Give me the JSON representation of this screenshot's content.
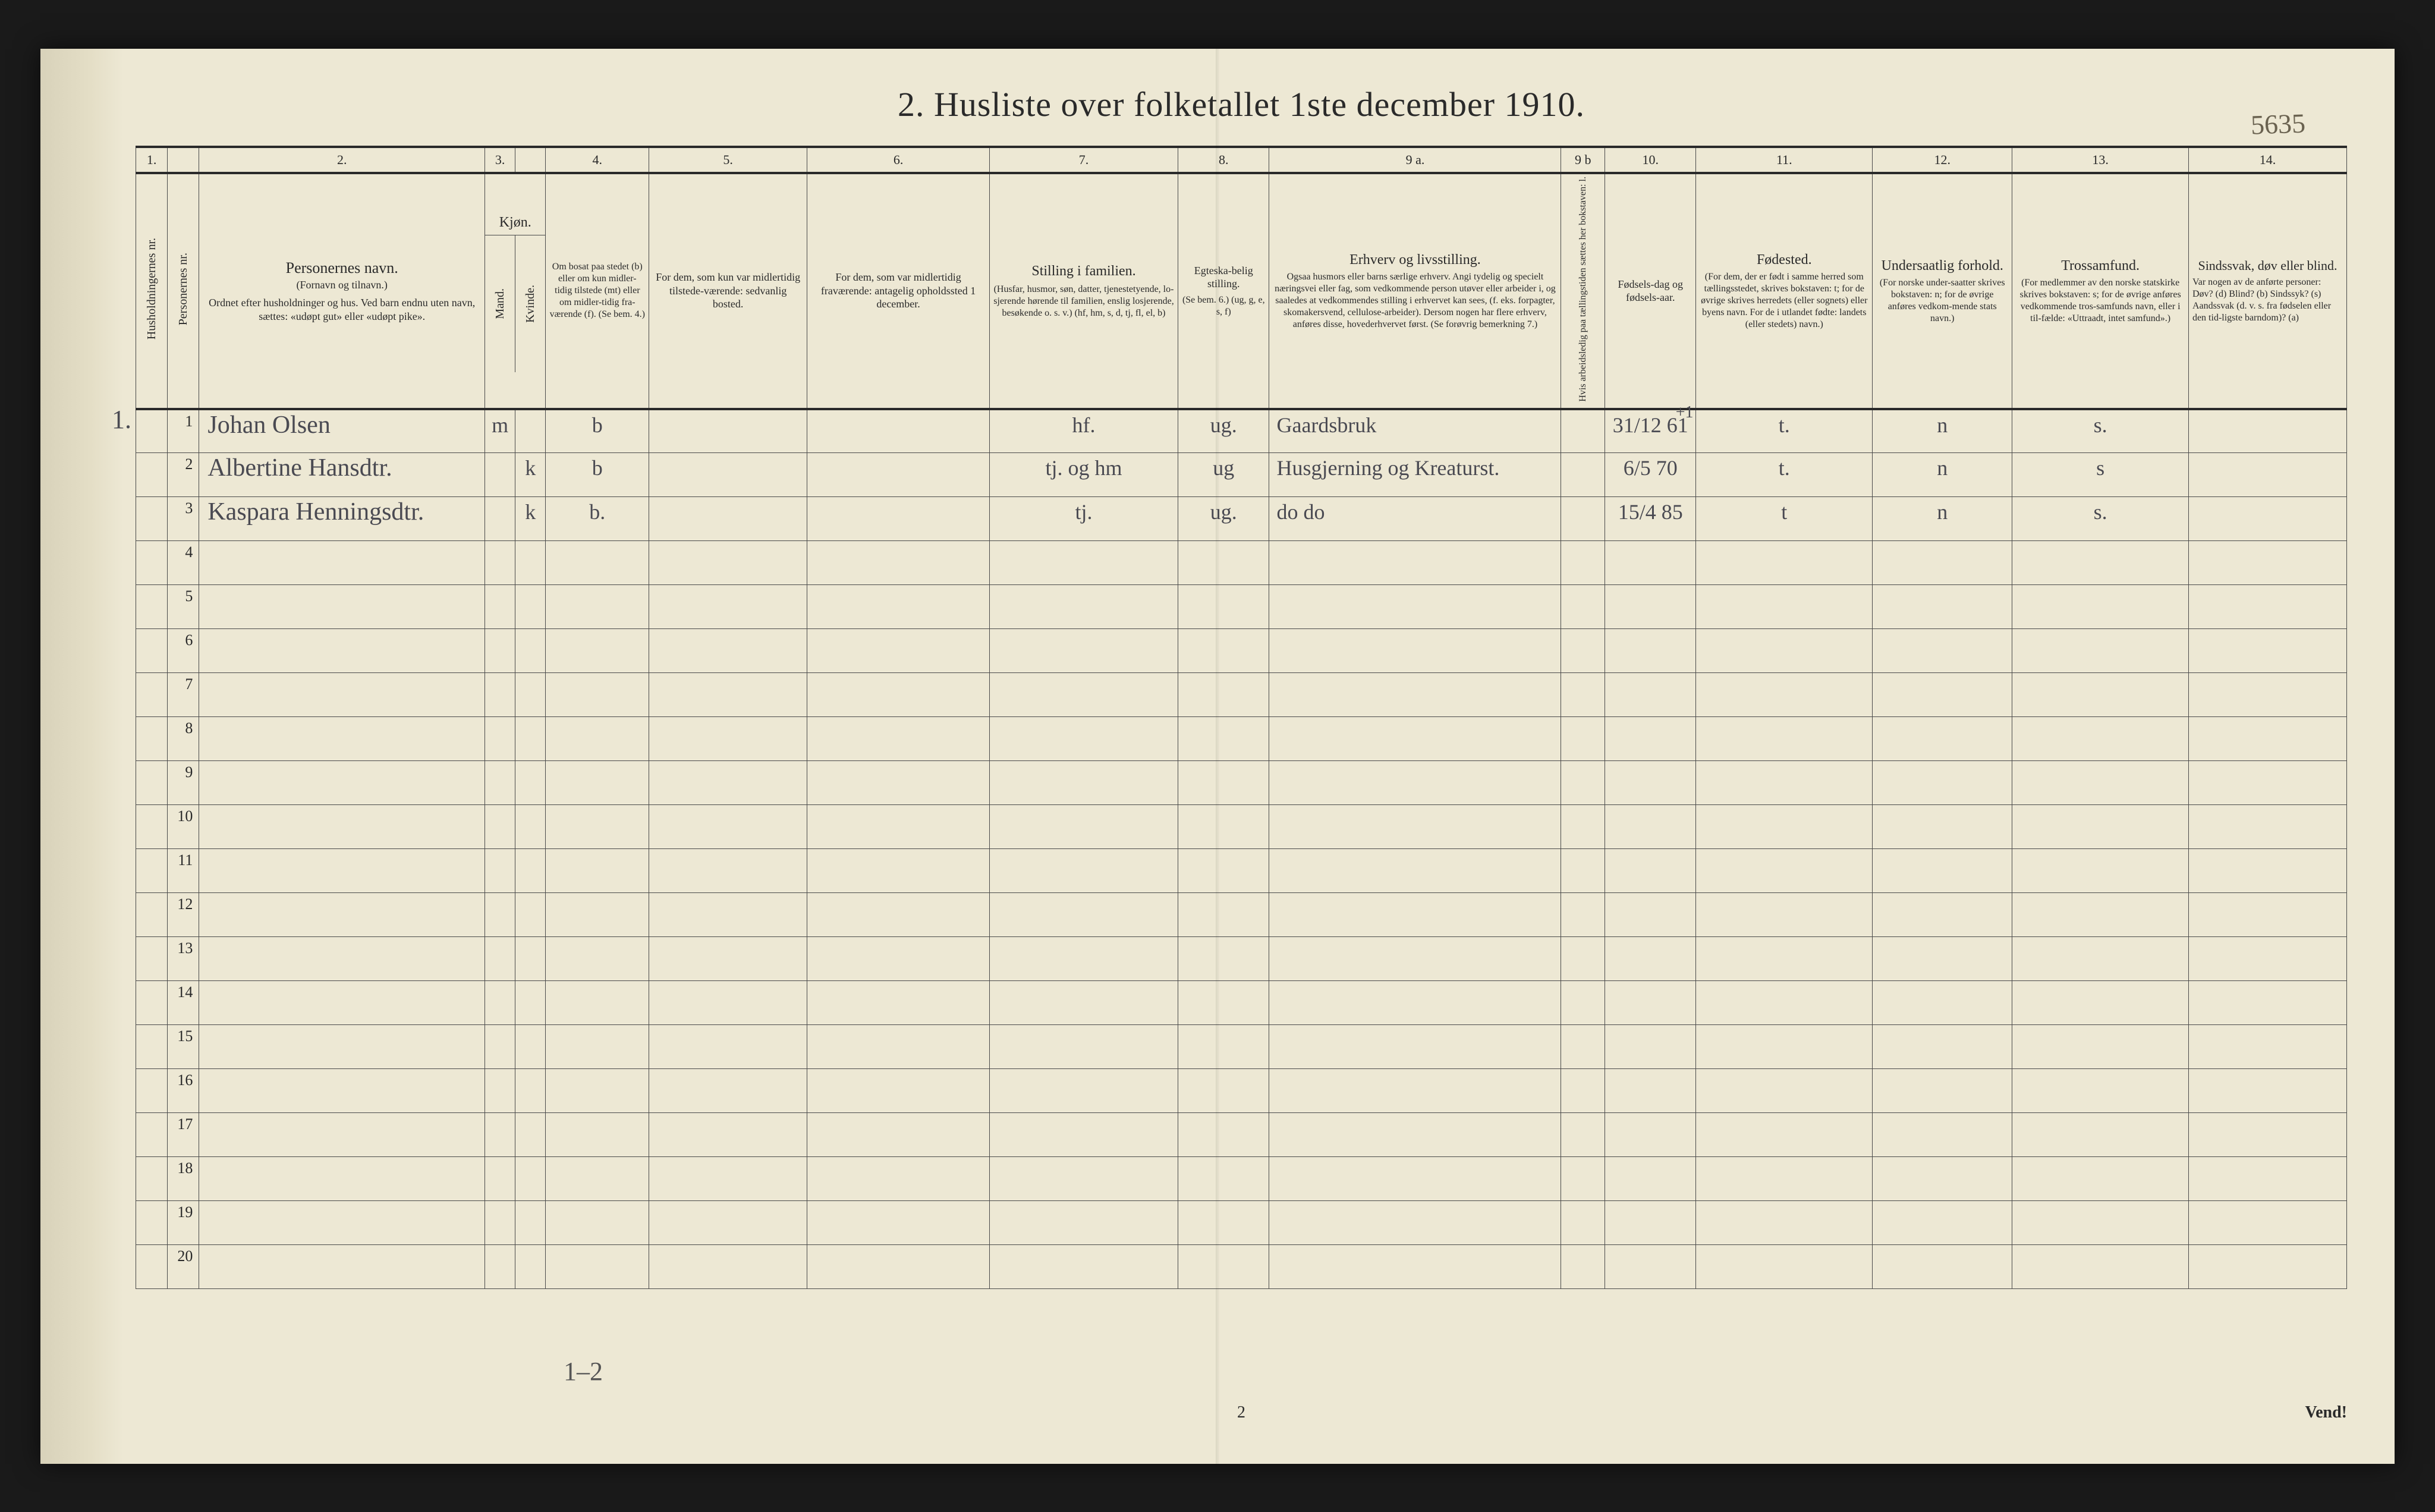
{
  "corner_note": "5635",
  "title": "2.  Husliste over folketallet 1ste december 1910.",
  "colnums": [
    "1.",
    "",
    "2.",
    "3.",
    "",
    "4.",
    "5.",
    "6.",
    "7.",
    "8.",
    "9 a.",
    "9 b",
    "10.",
    "11.",
    "12.",
    "13.",
    "14."
  ],
  "headers": {
    "c1": "Husholdningernes nr.",
    "c2": "Personernes nr.",
    "c3_top": "Personernes navn.",
    "c3_mid": "(Fornavn og tilnavn.)",
    "c3_bot": "Ordnet efter husholdninger og hus. Ved barn endnu uten navn, sættes: «udøpt gut» eller «udøpt pike».",
    "c45_top": "Kjøn.",
    "c4": "Mand.",
    "c5": "Kvinde.",
    "c6": "Om bosat paa stedet (b) eller om kun midler-tidig tilstede (mt) eller om midler-tidig fra-værende (f). (Se bem. 4.)",
    "c7": "For dem, som kun var midlertidig tilstede-værende: sedvanlig bosted.",
    "c8": "For dem, som var midlertidig fraværende: antagelig opholdssted 1 december.",
    "c9_top": "Stilling i familien.",
    "c9_bot": "(Husfar, husmor, søn, datter, tjenestetyende, lo-sjerende hørende til familien, enslig losjerende, besøkende o. s. v.) (hf, hm, s, d, tj, fl, el, b)",
    "c10_top": "Egteska-belig stilling.",
    "c10_bot": "(Se bem. 6.) (ug, g, e, s, f)",
    "c11_top": "Erhverv og livsstilling.",
    "c11_bot": "Ogsaa husmors eller barns særlige erhverv. Angi tydelig og specielt næringsvei eller fag, som vedkommende person utøver eller arbeider i, og saaledes at vedkommendes stilling i erhvervet kan sees, (f. eks. forpagter, skomakersvend, cellulose-arbeider). Dersom nogen har flere erhverv, anføres disse, hovederhvervet først. (Se forøvrig bemerkning 7.)",
    "c12": "Hvis arbeidsledig paa tællingstiden sættes her bokstaven: l.",
    "c13": "Fødsels-dag og fødsels-aar.",
    "c14_top": "Fødested.",
    "c14_bot": "(For dem, der er født i samme herred som tællingsstedet, skrives bokstaven: t; for de øvrige skrives herredets (eller sognets) eller byens navn. For de i utlandet fødte: landets (eller stedets) navn.)",
    "c15_top": "Undersaatlig forhold.",
    "c15_bot": "(For norske under-saatter skrives bokstaven: n; for de øvrige anføres vedkom-mende stats navn.)",
    "c16_top": "Trossamfund.",
    "c16_bot": "(For medlemmer av den norske statskirke skrives bokstaven: s; for de øvrige anføres vedkommende tros-samfunds navn, eller i til-fælde: «Uttraadt, intet samfund».)",
    "c17_top": "Sindssvak, døv eller blind.",
    "c17_bot": "Var nogen av de anførte personer: Døv? (d) Blind? (b) Sindssyk? (s) Aandssvak (d. v. s. fra fødselen eller den tid-ligste barndom)? (a)"
  },
  "household_num": "1.",
  "rows": [
    {
      "num": "1",
      "name": "Johan Olsen",
      "m": "m",
      "k": "",
      "res": "b",
      "c7": "",
      "c8": "",
      "fam": "hf.",
      "mar": "ug.",
      "occ": "Gaardsbruk",
      "l": "",
      "born": "31/12 61",
      "hi": "+1",
      "bp": "t.",
      "nat": "n",
      "rel": "s.",
      "dis": ""
    },
    {
      "num": "2",
      "name": "Albertine Hansdtr.",
      "m": "",
      "k": "k",
      "res": "b",
      "c7": "",
      "c8": "",
      "fam": "tj. og hm",
      "mar": "ug",
      "occ": "Husgjerning og Kreaturst.",
      "l": "",
      "born": "6/5 70",
      "hi": "",
      "bp": "t.",
      "nat": "n",
      "rel": "s",
      "dis": ""
    },
    {
      "num": "3",
      "name": "Kaspara Henningsdtr.",
      "m": "",
      "k": "k",
      "res": "b.",
      "c7": "",
      "c8": "",
      "fam": "tj.",
      "mar": "ug.",
      "occ": "do      do",
      "l": "",
      "born": "15/4 85",
      "hi": "",
      "bp": "t",
      "nat": "n",
      "rel": "s.",
      "dis": ""
    }
  ],
  "empty_rows": [
    "4",
    "5",
    "6",
    "7",
    "8",
    "9",
    "10",
    "11",
    "12",
    "13",
    "14",
    "15",
    "16",
    "17",
    "18",
    "19",
    "20"
  ],
  "foot_hand": "1–2",
  "footer_page": "2",
  "footer_right": "Vend!"
}
